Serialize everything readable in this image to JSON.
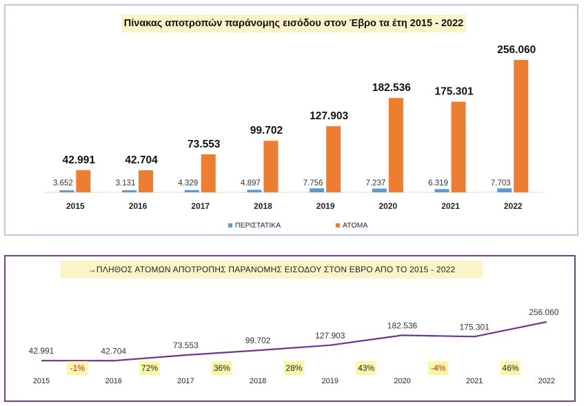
{
  "chart_data": [
    {
      "type": "bar",
      "title": "Πίνακας αποτροπών παράνομης εισόδου στον Έβρο τα έτη 2015 - 2022",
      "categories": [
        "2015",
        "2016",
        "2017",
        "2018",
        "2019",
        "2020",
        "2021",
        "2022"
      ],
      "series": [
        {
          "name": "ΠΕΡΙΣΤΑΤΙΚΑ",
          "color": "#5b9bd5",
          "values": [
            3652,
            3131,
            4329,
            4897,
            7756,
            7237,
            6319,
            7703
          ],
          "labels": [
            "3.652",
            "3.131",
            "4.329",
            "4.897",
            "7.756",
            "7.237",
            "6.319",
            "7.703"
          ]
        },
        {
          "name": "ΑΤΟΜΑ",
          "color": "#ed7d31",
          "values": [
            42991,
            42704,
            73553,
            99702,
            127903,
            182536,
            175301,
            256060
          ],
          "labels": [
            "42.991",
            "42.704",
            "73.553",
            "99.702",
            "127.903",
            "182.536",
            "175.301",
            "256.060"
          ]
        }
      ],
      "legend": "bottom",
      "grid": false
    },
    {
      "type": "line",
      "title": "ΠΛΗΘΟΣ ΑΤΟΜΩΝ ΑΠΟΤΡΟΠΗΣ ΠΑΡΑΝΟΜΗΣ ΕΙΣΟΔΟΥ ΣΤΟΝ ΕΒΡΟ ΑΠΟ ΤΟ 2015 - 2022",
      "categories": [
        "2015",
        "2016",
        "2017",
        "2018",
        "2019",
        "2020",
        "2021",
        "2022"
      ],
      "series": [
        {
          "color": "#7030a0",
          "values": [
            42991,
            42704,
            73553,
            99702,
            127903,
            182536,
            175301,
            256060
          ],
          "labels": [
            "42.991",
            "42.704",
            "73.553",
            "99.702",
            "127.903",
            "182.536",
            "175.301",
            "256.060"
          ]
        }
      ],
      "changes": [
        "-1%",
        "72%",
        "36%",
        "28%",
        "43%",
        "-4%",
        "46%"
      ],
      "change_colors": {
        "negative": "#e11d1d",
        "positive": "#222222",
        "highlight": "#fbf7a8"
      },
      "grid": false
    }
  ]
}
